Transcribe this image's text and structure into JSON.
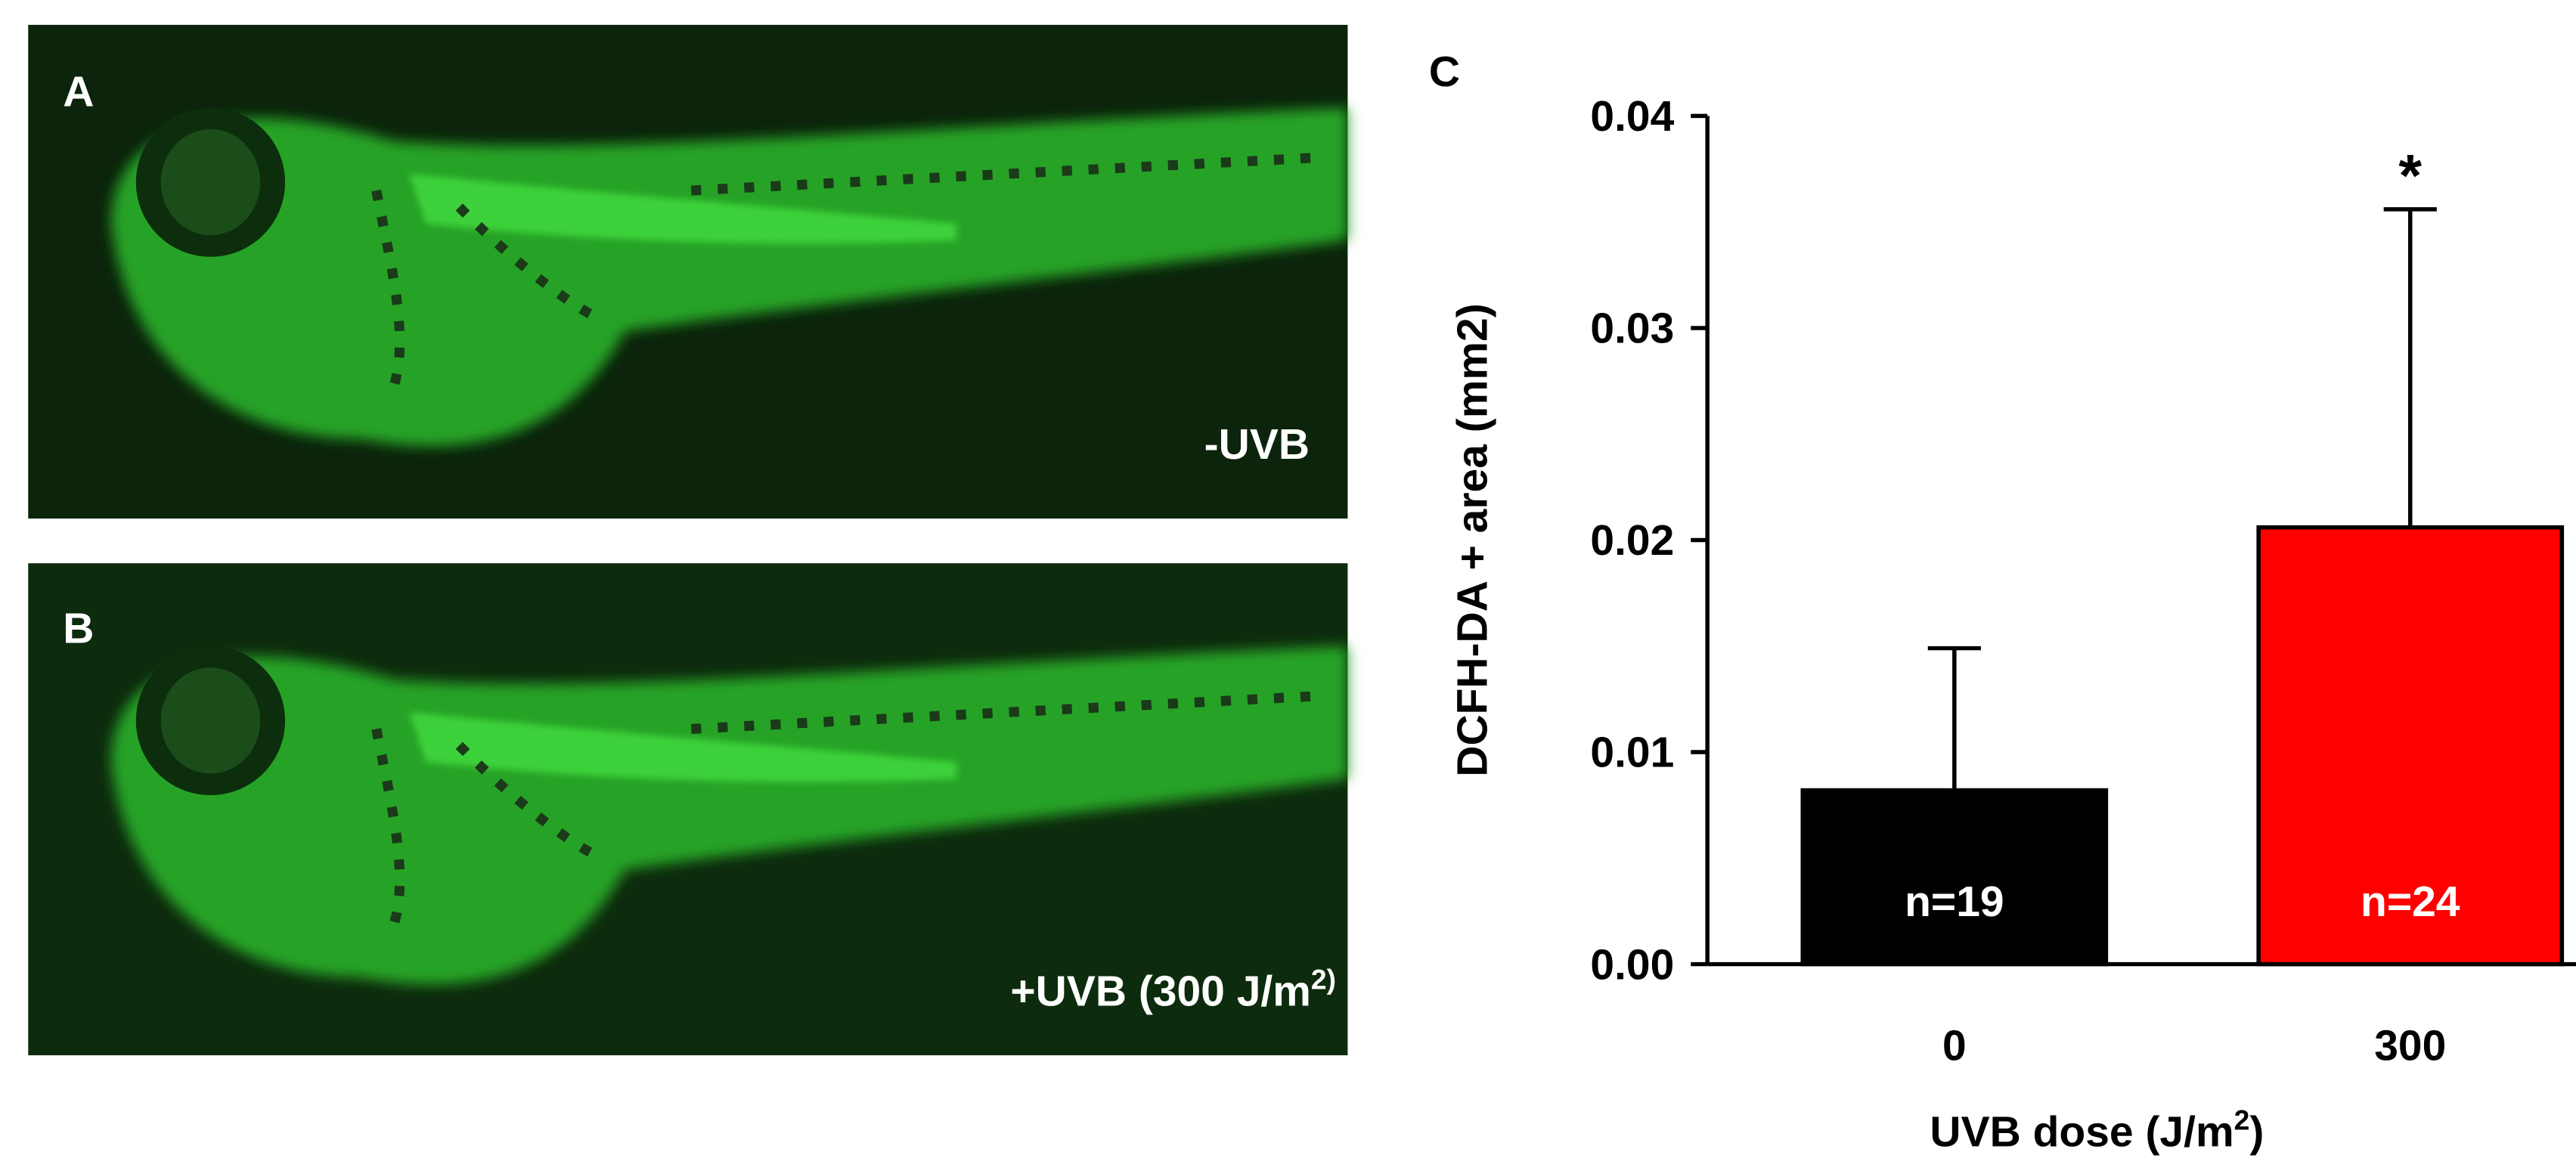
{
  "panels": [
    {
      "label": "A",
      "caption": "-UVB"
    },
    {
      "label": "B",
      "caption": "+UVB (300 J/m",
      "caption_superscript": "2)"
    }
  ],
  "chart_data": {
    "type": "bar",
    "panel_label": "C",
    "y_label": "DCFH-DA + area (mm2)",
    "x_label": "UVB dose (J/m",
    "x_label_superscript": "2",
    "x_label_end": ")",
    "categories": [
      "0",
      "300"
    ],
    "values": [
      0.0082,
      0.0206
    ],
    "errors": [
      0.0067,
      0.015
    ],
    "colors": [
      "#000000",
      "#ff0000"
    ],
    "bar_labels": [
      "n=19",
      "n=24"
    ],
    "annotation": {
      "text": "*",
      "category": "300"
    },
    "ylim": [
      0,
      0.04
    ],
    "yticks": [
      {
        "value": 0,
        "label": "0.00"
      },
      {
        "value": 0.01,
        "label": "0.01"
      },
      {
        "value": 0.02,
        "label": "0.02"
      },
      {
        "value": 0.03,
        "label": "0.03"
      },
      {
        "value": 0.04,
        "label": "0.04"
      }
    ]
  }
}
